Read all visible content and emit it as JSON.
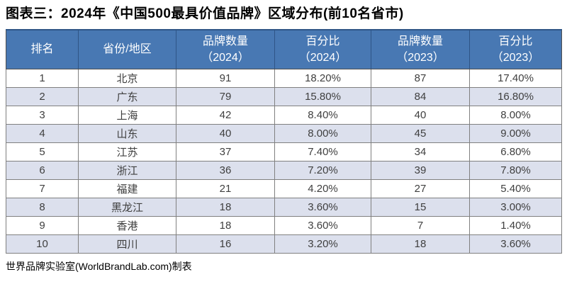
{
  "title": "图表三：2024年《中国500最具价值品牌》区域分布(前10名省市)",
  "source": "世界品牌实验室(WorldBrandLab.com)制表",
  "colors": {
    "header_bg": "#4878B3",
    "header_text": "#FFFFFF",
    "header_divider": "#2F5586",
    "band_bg": "#DCE0ED",
    "row_bg": "#FFFFFF",
    "grid_line": "#808080",
    "outer_border": "#4D4D4D",
    "body_text": "#3F3F3F",
    "title_text": "#000000"
  },
  "table": {
    "headers": [
      {
        "line1": "排名",
        "line2": ""
      },
      {
        "line1": "省份/地区",
        "line2": ""
      },
      {
        "line1": "品牌数量",
        "line2": "（2024）"
      },
      {
        "line1": "百分比",
        "line2": "（2024）"
      },
      {
        "line1": "品牌数量",
        "line2": "（2023）"
      },
      {
        "line1": "百分比",
        "line2": "（2023）"
      }
    ],
    "rows": [
      [
        "1",
        "北京",
        "91",
        "18.20%",
        "87",
        "17.40%"
      ],
      [
        "2",
        "广东",
        "79",
        "15.80%",
        "84",
        "16.80%"
      ],
      [
        "3",
        "上海",
        "42",
        "8.40%",
        "40",
        "8.00%"
      ],
      [
        "4",
        "山东",
        "40",
        "8.00%",
        "45",
        "9.00%"
      ],
      [
        "5",
        "江苏",
        "37",
        "7.40%",
        "34",
        "6.80%"
      ],
      [
        "6",
        "浙江",
        "36",
        "7.20%",
        "39",
        "7.80%"
      ],
      [
        "7",
        "福建",
        "21",
        "4.20%",
        "27",
        "5.40%"
      ],
      [
        "8",
        "黑龙江",
        "18",
        "3.60%",
        "15",
        "3.00%"
      ],
      [
        "9",
        "香港",
        "18",
        "3.60%",
        "7",
        "1.40%"
      ],
      [
        "10",
        "四川",
        "16",
        "3.20%",
        "18",
        "3.60%"
      ]
    ]
  },
  "chart_data": {
    "type": "table",
    "title": "图表三：2024年《中国500最具价值品牌》区域分布(前10名省市)",
    "columns": [
      "排名",
      "省份/地区",
      "品牌数量（2024）",
      "百分比（2024）",
      "品牌数量（2023）",
      "百分比（2023）"
    ],
    "rows": [
      [
        1,
        "北京",
        91,
        "18.20%",
        87,
        "17.40%"
      ],
      [
        2,
        "广东",
        79,
        "15.80%",
        84,
        "16.80%"
      ],
      [
        3,
        "上海",
        42,
        "8.40%",
        40,
        "8.00%"
      ],
      [
        4,
        "山东",
        40,
        "8.00%",
        45,
        "9.00%"
      ],
      [
        5,
        "江苏",
        37,
        "7.40%",
        34,
        "6.80%"
      ],
      [
        6,
        "浙江",
        36,
        "7.20%",
        39,
        "7.80%"
      ],
      [
        7,
        "福建",
        21,
        "4.20%",
        27,
        "5.40%"
      ],
      [
        8,
        "黑龙江",
        18,
        "3.60%",
        15,
        "3.00%"
      ],
      [
        9,
        "香港",
        18,
        "3.60%",
        7,
        "1.40%"
      ],
      [
        10,
        "四川",
        16,
        "3.20%",
        18,
        "3.60%"
      ]
    ],
    "source": "世界品牌实验室(WorldBrandLab.com)制表"
  }
}
